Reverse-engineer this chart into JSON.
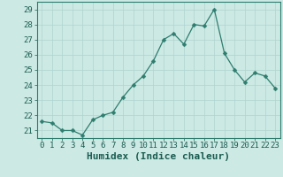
{
  "xlabel": "Humidex (Indice chaleur)",
  "x": [
    0,
    1,
    2,
    3,
    4,
    5,
    6,
    7,
    8,
    9,
    10,
    11,
    12,
    13,
    14,
    15,
    16,
    17,
    18,
    19,
    20,
    21,
    22,
    23
  ],
  "y": [
    21.6,
    21.5,
    21.0,
    21.0,
    20.7,
    21.7,
    22.0,
    22.2,
    23.2,
    24.0,
    24.6,
    25.6,
    27.0,
    27.4,
    26.7,
    28.0,
    27.9,
    29.0,
    26.1,
    25.0,
    24.2,
    24.8,
    24.6,
    23.8
  ],
  "line_color": "#2e7d6e",
  "marker": "D",
  "marker_size": 2.5,
  "bg_color": "#cce9e4",
  "grid_color": "#aed4cf",
  "tick_color": "#1a5c50",
  "ylim": [
    20.5,
    29.5
  ],
  "yticks": [
    21,
    22,
    23,
    24,
    25,
    26,
    27,
    28,
    29
  ],
  "xticks": [
    0,
    1,
    2,
    3,
    4,
    5,
    6,
    7,
    8,
    9,
    10,
    11,
    12,
    13,
    14,
    15,
    16,
    17,
    18,
    19,
    20,
    21,
    22,
    23
  ],
  "spine_color": "#2e7d6e",
  "xlabel_fontsize": 8,
  "tick_fontsize": 6.5
}
